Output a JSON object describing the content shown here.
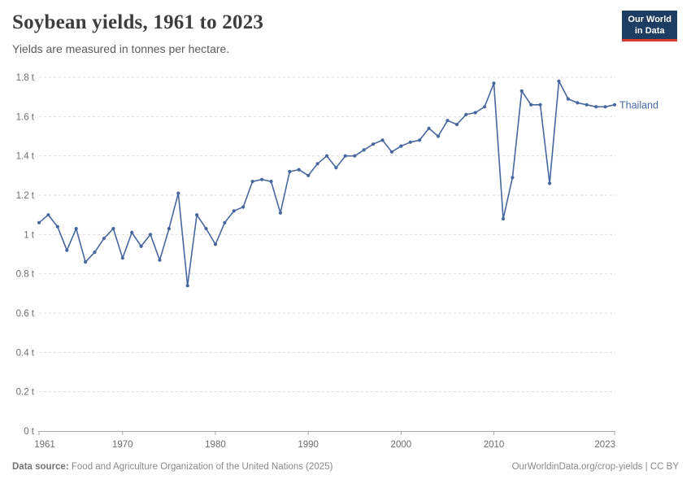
{
  "header": {
    "title": "Soybean yields, 1961 to 2023",
    "subtitle": "Yields are measured in tonnes per hectare."
  },
  "logo": {
    "line1": "Our World",
    "line2": "in Data",
    "bg_color": "#1d3d63",
    "accent_color": "#d93a2b"
  },
  "chart_data": {
    "type": "line",
    "title": "Soybean yields, 1961 to 2023",
    "xlabel": "",
    "ylabel": "tonnes per hectare",
    "xlim": [
      1961,
      2023
    ],
    "ylim": [
      0,
      1.8
    ],
    "x_ticks": [
      1961,
      1970,
      1980,
      1990,
      2000,
      2010,
      2023
    ],
    "y_ticks": [
      0,
      0.2,
      0.4,
      0.6,
      0.8,
      1,
      1.2,
      1.4,
      1.6,
      1.8
    ],
    "y_tick_suffix": " t",
    "grid": "horizontal-dashed",
    "grid_color": "#dbdbdb",
    "axis_color": "#a8a8a8",
    "tick_label_color": "#6e6e6e",
    "legend_position": "end-of-line",
    "series": [
      {
        "name": "Thailand",
        "color": "#47679f",
        "x": [
          1961,
          1962,
          1963,
          1964,
          1965,
          1966,
          1967,
          1968,
          1969,
          1970,
          1971,
          1972,
          1973,
          1974,
          1975,
          1976,
          1977,
          1978,
          1979,
          1980,
          1981,
          1982,
          1983,
          1984,
          1985,
          1986,
          1987,
          1988,
          1989,
          1990,
          1991,
          1992,
          1993,
          1994,
          1995,
          1996,
          1997,
          1998,
          1999,
          2000,
          2001,
          2002,
          2003,
          2004,
          2005,
          2006,
          2007,
          2008,
          2009,
          2010,
          2011,
          2012,
          2013,
          2014,
          2015,
          2016,
          2017,
          2018,
          2019,
          2020,
          2021,
          2022,
          2023
        ],
        "values": [
          1.06,
          1.1,
          1.04,
          0.92,
          1.03,
          0.86,
          0.91,
          0.98,
          1.03,
          0.88,
          1.01,
          0.94,
          1.0,
          0.87,
          1.03,
          1.21,
          0.74,
          1.1,
          1.03,
          0.95,
          1.06,
          1.12,
          1.14,
          1.27,
          1.28,
          1.27,
          1.11,
          1.32,
          1.33,
          1.3,
          1.36,
          1.4,
          1.34,
          1.4,
          1.4,
          1.43,
          1.46,
          1.48,
          1.42,
          1.45,
          1.47,
          1.48,
          1.54,
          1.5,
          1.58,
          1.56,
          1.61,
          1.62,
          1.65,
          1.77,
          1.08,
          1.29,
          1.73,
          1.66,
          1.66,
          1.26,
          1.78,
          1.69,
          1.67,
          1.66,
          1.65,
          1.65,
          1.66
        ]
      }
    ]
  },
  "footer": {
    "datasource_label": "Data source:",
    "datasource": "Food and Agriculture Organization of the United Nations (2025)",
    "link": "OurWorldinData.org/crop-yields",
    "separator": "|",
    "license": "CC BY"
  }
}
